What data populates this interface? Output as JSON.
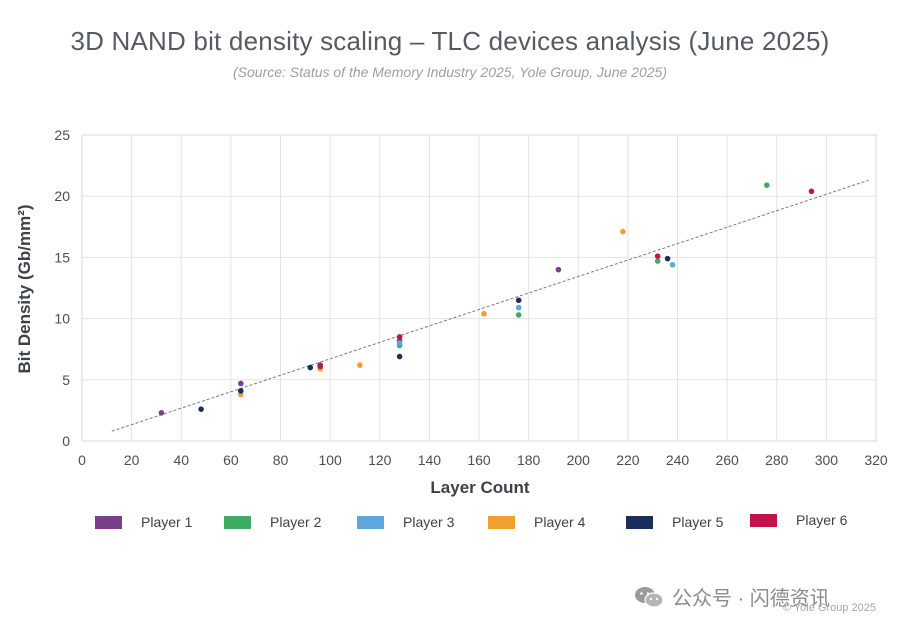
{
  "title": "3D NAND bit density scaling – TLC devices analysis (June 2025)",
  "subtitle": "(Source: Status of the Memory Industry 2025, Yole Group, June 2025)",
  "watermark": "公众号 · 闪德资讯",
  "copyright": "© Yole Group 2025",
  "colors": {
    "Player 1": "#7b3f8a",
    "Player 2": "#3eaa62",
    "Player 3": "#5ea6dc",
    "Player 4": "#f0a030",
    "Player 5": "#1b2d5a",
    "Player 6": "#c0144a"
  },
  "chart_data": {
    "type": "scatter",
    "title": "3D NAND bit density scaling – TLC devices analysis (June 2025)",
    "xlabel": "Layer Count",
    "ylabel": "Bit Density (Gb/mm²)",
    "xlim": [
      0,
      320
    ],
    "ylim": [
      0,
      25
    ],
    "xticks": [
      0,
      20,
      40,
      60,
      80,
      100,
      120,
      140,
      160,
      180,
      200,
      220,
      240,
      260,
      280,
      300,
      320
    ],
    "yticks": [
      0,
      5,
      10,
      15,
      20,
      25
    ],
    "grid": true,
    "legend_position": "bottom",
    "trendline": {
      "style": "dashed",
      "from": [
        12,
        0.8
      ],
      "to": [
        317,
        21.3
      ]
    },
    "series": [
      {
        "name": "Player 1",
        "points": [
          [
            32,
            2.3
          ],
          [
            64,
            4.7
          ],
          [
            96,
            6.2
          ],
          [
            128,
            8.2
          ],
          [
            192,
            14.0
          ]
        ]
      },
      {
        "name": "Player 2",
        "points": [
          [
            128,
            7.8
          ],
          [
            176,
            10.3
          ],
          [
            232,
            14.7
          ],
          [
            276,
            20.9
          ]
        ]
      },
      {
        "name": "Player 3",
        "points": [
          [
            128,
            8.0
          ],
          [
            176,
            10.9
          ],
          [
            238,
            14.4
          ]
        ]
      },
      {
        "name": "Player 4",
        "points": [
          [
            64,
            3.8
          ],
          [
            96,
            5.9
          ],
          [
            112,
            6.2
          ],
          [
            162,
            10.4
          ],
          [
            218,
            17.1
          ]
        ]
      },
      {
        "name": "Player 5",
        "points": [
          [
            48,
            2.6
          ],
          [
            64,
            4.1
          ],
          [
            92,
            6.0
          ],
          [
            128,
            6.9
          ],
          [
            176,
            11.5
          ],
          [
            236,
            14.9
          ]
        ]
      },
      {
        "name": "Player 6",
        "points": [
          [
            96,
            6.1
          ],
          [
            128,
            8.5
          ],
          [
            232,
            15.1
          ],
          [
            294,
            20.4
          ]
        ]
      }
    ]
  }
}
